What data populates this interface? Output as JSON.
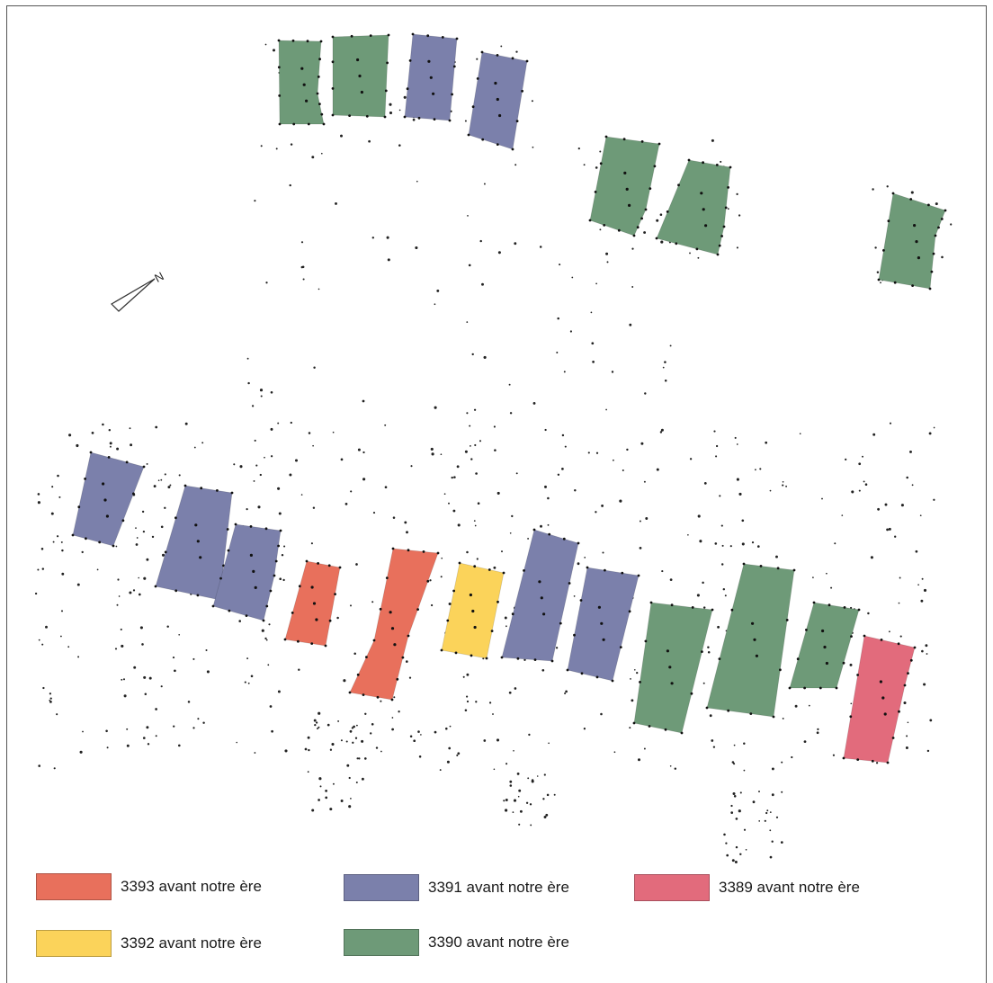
{
  "periods": {
    "p3393": {
      "label": "3393 avant notre ère",
      "color": "#e8705c"
    },
    "p3392": {
      "label": "3392 avant notre ère",
      "color": "#fbd35a"
    },
    "p3391": {
      "label": "3391 avant notre ère",
      "color": "#7b80ab"
    },
    "p3390": {
      "label": "3390 avant notre ère",
      "color": "#6e9a78"
    },
    "p3389": {
      "label": "3389 avant notre ère",
      "color": "#e26b7c"
    }
  },
  "north_arrow": {
    "label": "N"
  },
  "legend": [
    {
      "period": "p3393"
    },
    {
      "period": "p3391"
    },
    {
      "period": "p3389"
    },
    {
      "period": "p3392"
    },
    {
      "period": "p3390"
    }
  ],
  "buildings": [
    {
      "id": "b1",
      "period": "p3390"
    },
    {
      "id": "b2",
      "period": "p3390"
    },
    {
      "id": "b3",
      "period": "p3391"
    },
    {
      "id": "b4",
      "period": "p3391"
    },
    {
      "id": "b5",
      "period": "p3390"
    },
    {
      "id": "b6",
      "period": "p3390"
    },
    {
      "id": "b7",
      "period": "p3390"
    },
    {
      "id": "b8",
      "period": "p3391"
    },
    {
      "id": "b9",
      "period": "p3391"
    },
    {
      "id": "b10",
      "period": "p3391"
    },
    {
      "id": "b11",
      "period": "p3393"
    },
    {
      "id": "b12",
      "period": "p3393"
    },
    {
      "id": "b13",
      "period": "p3392"
    },
    {
      "id": "b14",
      "period": "p3391"
    },
    {
      "id": "b15",
      "period": "p3391"
    },
    {
      "id": "b16",
      "period": "p3390"
    },
    {
      "id": "b17",
      "period": "p3390"
    },
    {
      "id": "b18",
      "period": "p3390"
    },
    {
      "id": "b19",
      "period": "p3389"
    }
  ]
}
